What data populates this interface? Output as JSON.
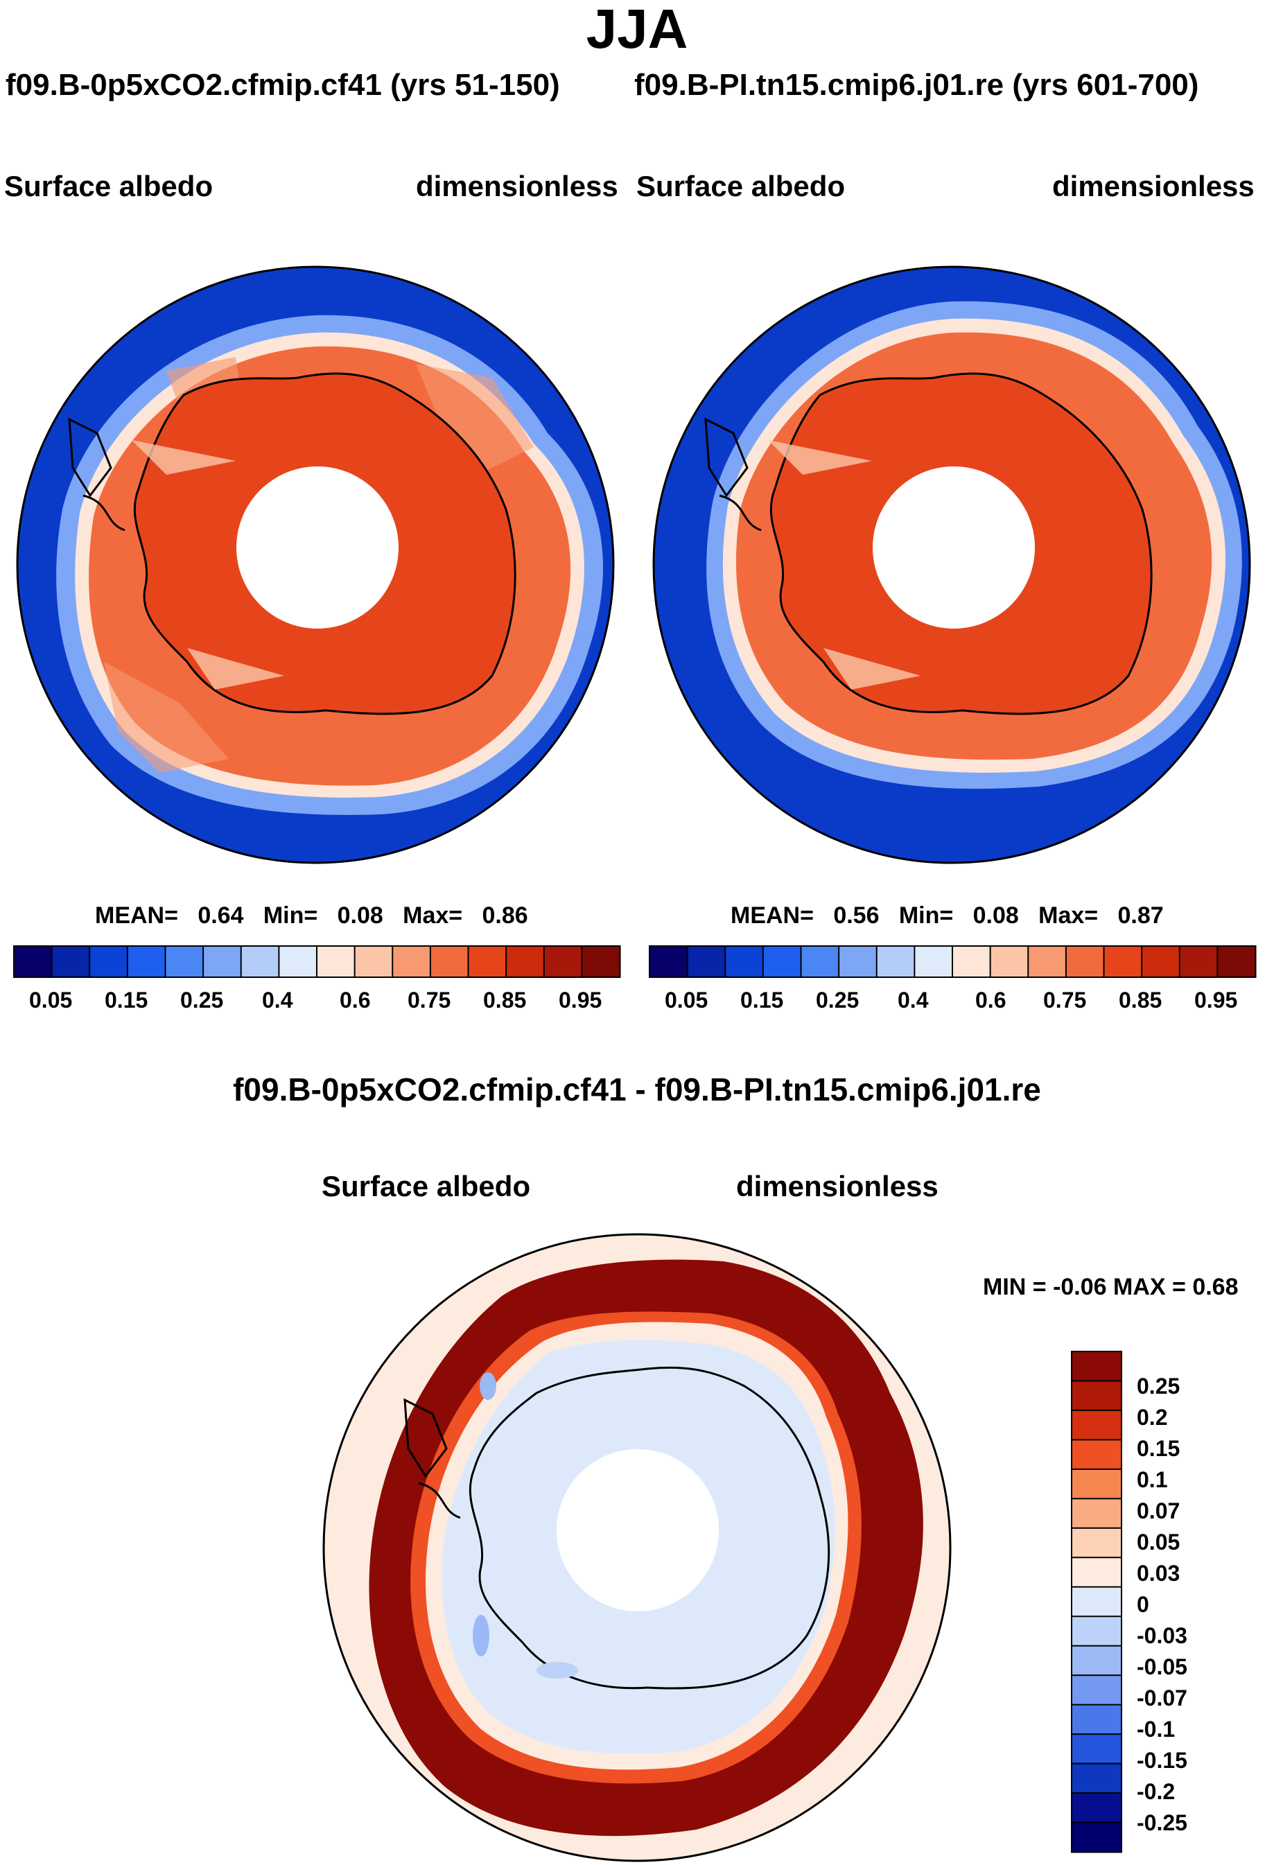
{
  "title": "JJA",
  "case_left": "f09.B-0p5xCO2.cfmip.cf41 (yrs 51-150)",
  "case_right": "f09.B-PI.tn15.cmip6.j01.re (yrs 601-700)",
  "panel_left": {
    "variable": "Surface albedo",
    "units": "dimensionless",
    "stats": {
      "mean_label": "MEAN=",
      "mean": "0.64",
      "min_label": "Min=",
      "min": "0.08",
      "max_label": "Max=",
      "max": "0.86"
    }
  },
  "panel_right": {
    "variable": "Surface albedo",
    "units": "dimensionless",
    "stats": {
      "mean_label": "MEAN=",
      "mean": "0.56",
      "min_label": "Min=",
      "min": "0.08",
      "max_label": "Max=",
      "max": "0.87"
    }
  },
  "abs_colorbar": {
    "colors": [
      "#08006b",
      "#0625a8",
      "#0a43d6",
      "#1f5ff0",
      "#4a86f4",
      "#7ea6f6",
      "#b4cdf8",
      "#dfeafb",
      "#fde6d8",
      "#fbc6a8",
      "#f79a72",
      "#f26b3e",
      "#e6451b",
      "#cc2b0c",
      "#a8180a",
      "#7d0a05"
    ],
    "tick_labels": [
      "0.05",
      "0.15",
      "0.25",
      "0.4",
      "0.6",
      "0.75",
      "0.85",
      "0.95"
    ]
  },
  "diff_title": "f09.B-0p5xCO2.cfmip.cf41 - f09.B-PI.tn15.cmip6.j01.re",
  "panel_diff": {
    "variable": "Surface albedo",
    "units": "dimensionless",
    "minmax": "MIN =  -0.06 MAX =   0.68"
  },
  "diff_colorbar": {
    "colors": [
      "#8b0a05",
      "#b01808",
      "#d5300f",
      "#ef5024",
      "#f6864f",
      "#f9ab83",
      "#fcd1b6",
      "#fdebdf",
      "#dde9fb",
      "#bcd2f8",
      "#9ab9f5",
      "#7399f0",
      "#4a78ea",
      "#2356dd",
      "#0d38bf",
      "#050f8f",
      "#00006e"
    ],
    "labels": [
      "0.25",
      "0.2",
      "0.15",
      "0.1",
      "0.07",
      "0.05",
      "0.03",
      "0",
      "-0.03",
      "-0.05",
      "-0.07",
      "-0.1",
      "-0.15",
      "-0.2",
      "-0.25"
    ]
  }
}
